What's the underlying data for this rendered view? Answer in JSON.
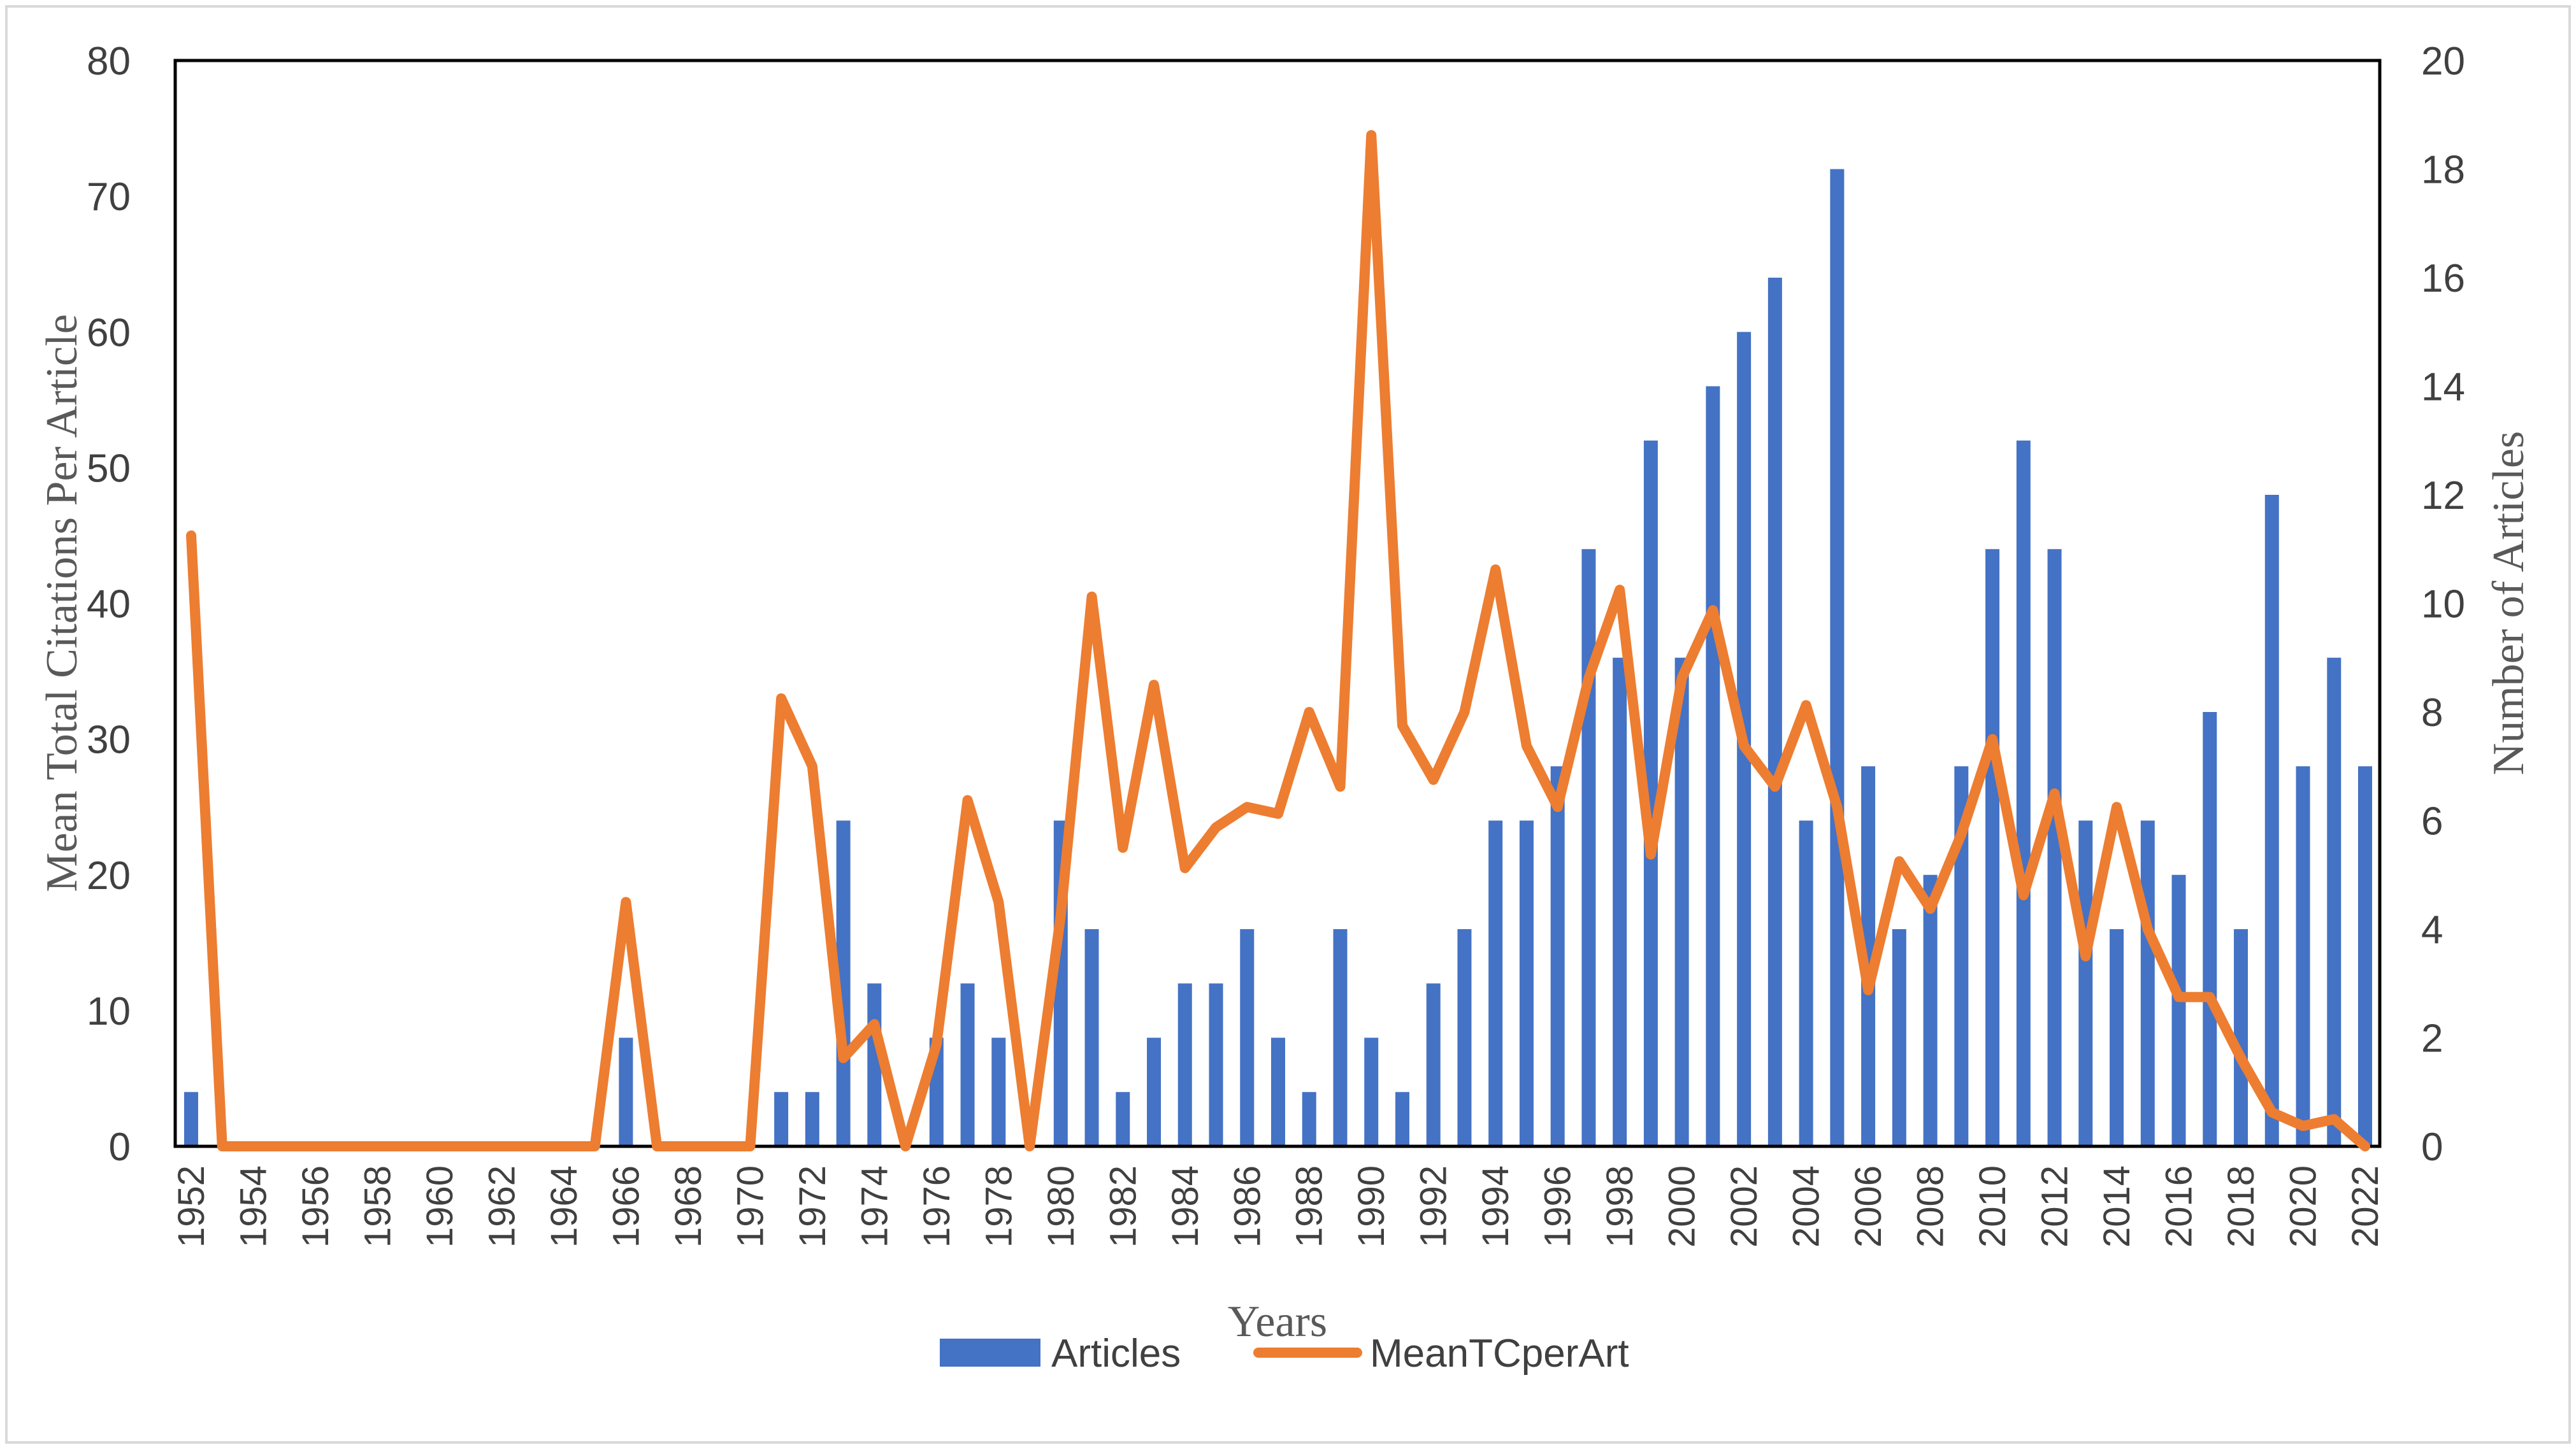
{
  "chart_data": {
    "type": "bar+line",
    "categories": [
      1952,
      1953,
      1954,
      1955,
      1956,
      1957,
      1958,
      1959,
      1960,
      1961,
      1962,
      1963,
      1964,
      1965,
      1966,
      1967,
      1968,
      1969,
      1970,
      1971,
      1972,
      1973,
      1974,
      1975,
      1976,
      1977,
      1978,
      1979,
      1980,
      1981,
      1982,
      1983,
      1984,
      1985,
      1986,
      1987,
      1988,
      1989,
      1990,
      1991,
      1992,
      1993,
      1994,
      1995,
      1996,
      1997,
      1998,
      1999,
      2000,
      2001,
      2002,
      2003,
      2004,
      2005,
      2006,
      2007,
      2008,
      2009,
      2010,
      2011,
      2012,
      2013,
      2014,
      2015,
      2016,
      2017,
      2018,
      2019,
      2020,
      2021,
      2022
    ],
    "x_tick_labels": [
      "1952",
      "1954",
      "1956",
      "1958",
      "1960",
      "1962",
      "1964",
      "1966",
      "1968",
      "1970",
      "1972",
      "1974",
      "1976",
      "1978",
      "1980",
      "1982",
      "1984",
      "1986",
      "1988",
      "1990",
      "1992",
      "1994",
      "1996",
      "1998",
      "2000",
      "2002",
      "2004",
      "2006",
      "2008",
      "2010",
      "2012",
      "2014",
      "2016",
      "2018",
      "2020",
      "2022"
    ],
    "series": [
      {
        "name": "Articles",
        "type": "bar",
        "axis": "right",
        "color": "#4472C4",
        "values": [
          1,
          0,
          0,
          0,
          0,
          0,
          0,
          0,
          0,
          0,
          0,
          0,
          0,
          0,
          2,
          0,
          0,
          0,
          0,
          1,
          1,
          6,
          3,
          0,
          2,
          3,
          2,
          0,
          6,
          4,
          1,
          2,
          3,
          3,
          4,
          2,
          1,
          4,
          2,
          1,
          3,
          4,
          6,
          6,
          7,
          11,
          9,
          13,
          9,
          14,
          15,
          16,
          6,
          18,
          7,
          4,
          5,
          7,
          11,
          13,
          11,
          6,
          4,
          6,
          5,
          8,
          4,
          12,
          7,
          9,
          7
        ]
      },
      {
        "name": "MeanTCperArt",
        "type": "line",
        "axis": "left",
        "color": "#ED7D31",
        "values": [
          45,
          0,
          0,
          0,
          0,
          0,
          0,
          0,
          0,
          0,
          0,
          0,
          0,
          0,
          18,
          0,
          0,
          0,
          0,
          33,
          28,
          6.5,
          9,
          0,
          7.5,
          25.5,
          18,
          0,
          17,
          40.5,
          22,
          34,
          20.5,
          23.5,
          25,
          24.5,
          32,
          26.5,
          74.5,
          31,
          27,
          32,
          42.5,
          29.5,
          25,
          34.5,
          41,
          21.5,
          34.5,
          39.5,
          29.5,
          26.5,
          32.5,
          25,
          11.5,
          21,
          17.5,
          23,
          30,
          18.5,
          26,
          14,
          25,
          16,
          11,
          11,
          6.5,
          2.5,
          1.5,
          2,
          0
        ]
      }
    ],
    "left_axis": {
      "label": "Mean Total Citations Per Article",
      "min": 0,
      "max": 80,
      "step": 10
    },
    "right_axis": {
      "label": "Number of Articles",
      "min": 0,
      "max": 20,
      "step": 2
    },
    "xlabel": "Years",
    "legend": {
      "position": "bottom",
      "items": [
        "Articles",
        "MeanTCperArt"
      ]
    }
  }
}
